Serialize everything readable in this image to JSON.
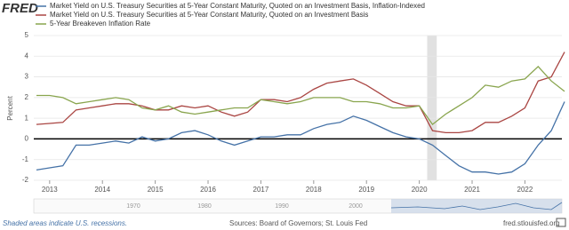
{
  "logo": "FRED",
  "chart_data": {
    "type": "line",
    "y_label": "Percent",
    "x": [
      2012.75,
      2013.0,
      2013.25,
      2013.5,
      2013.75,
      2014.0,
      2014.25,
      2014.5,
      2014.75,
      2015.0,
      2015.25,
      2015.5,
      2015.75,
      2016.0,
      2016.25,
      2016.5,
      2016.75,
      2017.0,
      2017.25,
      2017.5,
      2017.75,
      2018.0,
      2018.25,
      2018.5,
      2018.75,
      2019.0,
      2019.25,
      2019.5,
      2019.75,
      2020.0,
      2020.25,
      2020.5,
      2020.75,
      2021.0,
      2021.25,
      2021.5,
      2021.75,
      2022.0,
      2022.25,
      2022.5,
      2022.75
    ],
    "series": [
      {
        "name": "Market Yield on U.S. Treasury Securities at 5-Year Constant Maturity, Quoted on an Investment Basis, Inflation-Indexed",
        "color": "#4572a7",
        "values": [
          -1.5,
          -1.4,
          -1.3,
          -0.3,
          -0.3,
          -0.2,
          -0.1,
          -0.2,
          0.1,
          -0.1,
          0.0,
          0.3,
          0.4,
          0.2,
          -0.1,
          -0.3,
          -0.1,
          0.1,
          0.1,
          0.2,
          0.2,
          0.5,
          0.7,
          0.8,
          1.1,
          0.9,
          0.6,
          0.3,
          0.1,
          0.0,
          -0.3,
          -0.8,
          -1.3,
          -1.6,
          -1.6,
          -1.7,
          -1.6,
          -1.2,
          -0.3,
          0.4,
          1.8
        ]
      },
      {
        "name": "Market Yield on U.S. Treasury Securities at 5-Year Constant Maturity, Quoted on an Investment Basis",
        "color": "#aa4643",
        "values": [
          0.7,
          0.75,
          0.8,
          1.4,
          1.5,
          1.6,
          1.7,
          1.7,
          1.6,
          1.4,
          1.4,
          1.6,
          1.5,
          1.6,
          1.3,
          1.1,
          1.3,
          1.9,
          1.9,
          1.8,
          2.0,
          2.4,
          2.7,
          2.8,
          2.9,
          2.6,
          2.2,
          1.8,
          1.6,
          1.6,
          0.4,
          0.3,
          0.3,
          0.4,
          0.8,
          0.8,
          1.1,
          1.5,
          2.8,
          3.0,
          4.2
        ]
      },
      {
        "name": "5-Year Breakeven Inflation Rate",
        "color": "#89a54e",
        "values": [
          2.1,
          2.1,
          2.0,
          1.7,
          1.8,
          1.9,
          2.0,
          1.9,
          1.5,
          1.4,
          1.6,
          1.3,
          1.2,
          1.3,
          1.4,
          1.5,
          1.5,
          1.9,
          1.8,
          1.7,
          1.8,
          2.0,
          2.0,
          2.0,
          1.8,
          1.8,
          1.7,
          1.5,
          1.5,
          1.6,
          0.7,
          1.2,
          1.6,
          2.0,
          2.6,
          2.5,
          2.8,
          2.9,
          3.5,
          2.8,
          2.3
        ]
      }
    ],
    "xlim": [
      2012.7,
      2022.7
    ],
    "xticks": [
      2013,
      2014,
      2015,
      2016,
      2017,
      2018,
      2019,
      2020,
      2021,
      2022
    ],
    "ylim": [
      -2,
      5
    ],
    "yticks": [
      -2,
      -1,
      0,
      1,
      2,
      3,
      4,
      5
    ],
    "grid": true,
    "recession": [
      2020.15,
      2020.33
    ]
  },
  "navigator_labels": [
    "1970",
    "1980",
    "1990",
    "2000"
  ],
  "footer": {
    "note": "Shaded areas indicate U.S. recessions.",
    "source": "Sources: Board of Governors; St. Louis Fed",
    "site": "fred.stlouisfed.org"
  }
}
